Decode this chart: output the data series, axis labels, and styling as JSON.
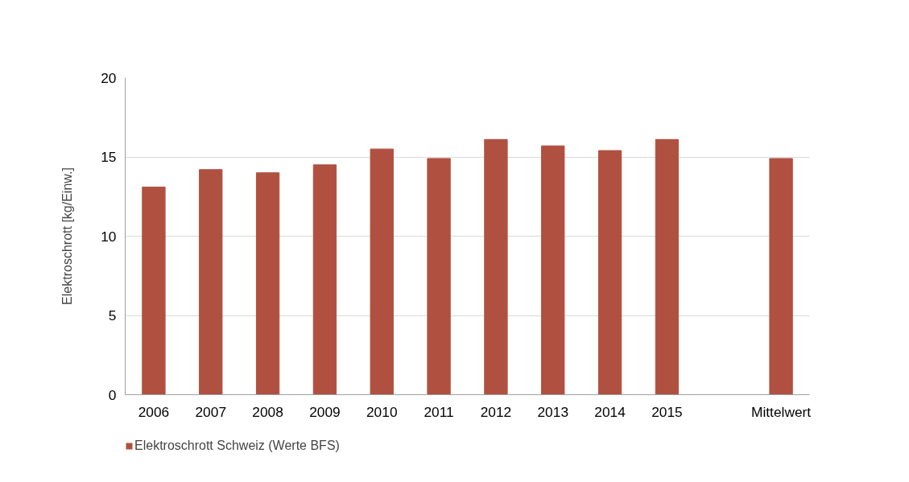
{
  "chart_data": {
    "type": "bar",
    "ylabel": "Elektroschrott [kg/Einw.]",
    "categories": [
      "2006",
      "2007",
      "2008",
      "2009",
      "2010",
      "2011",
      "2012",
      "2013",
      "2014",
      "2015",
      null,
      "Mittelwert"
    ],
    "series": [
      {
        "name": "Elektroschrott Schweiz (Werte BFS)",
        "color": "#b05040",
        "values": [
          13.1,
          14.2,
          14.0,
          14.5,
          15.5,
          14.9,
          16.1,
          15.7,
          15.4,
          16.1,
          null,
          14.9
        ]
      }
    ],
    "ylim": [
      0,
      20
    ],
    "yticks": [
      0,
      5,
      10,
      15,
      20
    ],
    "grid": "y",
    "legend": "bottom left"
  }
}
